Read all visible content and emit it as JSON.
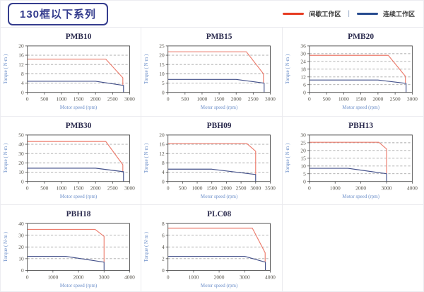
{
  "header": {
    "title": "130框以下系列",
    "legend": [
      {
        "label": "间歇工作区",
        "color": "#e63c22"
      },
      {
        "label": "连续工作区",
        "color": "#274b8f"
      }
    ],
    "legend_separator": "|",
    "accent_color": "#353d8e"
  },
  "styles": {
    "grid_color": "#a9a9a9",
    "axis_color": "#4d4d4d",
    "tick_label_color": "#55524a",
    "axis_label_color": "#6b8ec9",
    "title_color": "#2b2b4e",
    "intermittent_line_color": "#ec7c6d",
    "continuous_line_color": "#44518a"
  },
  "chart_data": [
    {
      "type": "line",
      "title": "PMB10",
      "xlabel": "Motor speed (rpm)",
      "ylabel": "Torque ( N·m )",
      "xlim": [
        0,
        3000
      ],
      "xticks": [
        0,
        500,
        1000,
        1500,
        2000,
        2500,
        3000
      ],
      "ylim": [
        0,
        20
      ],
      "yticks": [
        0,
        4,
        8,
        12,
        16,
        20
      ],
      "series": [
        {
          "name": "间歇工作区",
          "color": "#ec7c6d",
          "points": [
            [
              0,
              14.3
            ],
            [
              2300,
              14.3
            ],
            [
              2800,
              6.3
            ],
            [
              2800,
              3.2
            ]
          ]
        },
        {
          "name": "连续工作区",
          "color": "#44518a",
          "points": [
            [
              0,
              4.8
            ],
            [
              2000,
              4.8
            ],
            [
              2820,
              3
            ],
            [
              2820,
              0
            ]
          ]
        }
      ]
    },
    {
      "type": "line",
      "title": "PMB15",
      "xlabel": "Motor speed (rpm)",
      "ylabel": "Torque ( N·m )",
      "xlim": [
        0,
        3000
      ],
      "xticks": [
        0,
        500,
        1000,
        1500,
        2000,
        2500,
        3000
      ],
      "ylim": [
        0,
        25
      ],
      "yticks": [
        0,
        5,
        10,
        15,
        20,
        25
      ],
      "series": [
        {
          "name": "间歇工作区",
          "color": "#ec7c6d",
          "points": [
            [
              0,
              21.8
            ],
            [
              2300,
              21.8
            ],
            [
              2800,
              10
            ],
            [
              2800,
              5
            ]
          ]
        },
        {
          "name": "连续工作区",
          "color": "#44518a",
          "points": [
            [
              0,
              7
            ],
            [
              2000,
              7
            ],
            [
              2820,
              5
            ],
            [
              2820,
              0
            ]
          ]
        }
      ]
    },
    {
      "type": "line",
      "title": "PMB20",
      "xlabel": "Motor speed (rpm)",
      "ylabel": "Torque ( N·m )",
      "xlim": [
        0,
        3000
      ],
      "xticks": [
        0,
        500,
        1000,
        1500,
        2000,
        2500,
        3000
      ],
      "ylim": [
        0,
        36
      ],
      "yticks": [
        0,
        6,
        12,
        18,
        24,
        30,
        36
      ],
      "series": [
        {
          "name": "间歇工作区",
          "color": "#ec7c6d",
          "points": [
            [
              0,
              28.7
            ],
            [
              2300,
              28.7
            ],
            [
              2800,
              12.5
            ],
            [
              2800,
              7
            ]
          ]
        },
        {
          "name": "连续工作区",
          "color": "#44518a",
          "points": [
            [
              0,
              9.6
            ],
            [
              2000,
              9.6
            ],
            [
              2820,
              7
            ],
            [
              2820,
              0
            ]
          ]
        }
      ]
    },
    {
      "type": "line",
      "title": "PMB30",
      "xlabel": "Motor speed (rpm)",
      "ylabel": "Torque ( N·m )",
      "xlim": [
        0,
        3000
      ],
      "xticks": [
        0,
        500,
        1000,
        1500,
        2000,
        2500,
        3000
      ],
      "ylim": [
        0,
        50
      ],
      "yticks": [
        0,
        10,
        20,
        30,
        40,
        50
      ],
      "series": [
        {
          "name": "间歇工作区",
          "color": "#ec7c6d",
          "points": [
            [
              0,
              43
            ],
            [
              2300,
              43
            ],
            [
              2800,
              18
            ],
            [
              2800,
              10.5
            ]
          ]
        },
        {
          "name": "连续工作区",
          "color": "#44518a",
          "points": [
            [
              0,
              14.3
            ],
            [
              2000,
              14.3
            ],
            [
              2820,
              10.5
            ],
            [
              2820,
              0
            ]
          ]
        }
      ]
    },
    {
      "type": "line",
      "title": "PBH09",
      "xlabel": "Motor speed (rpm)",
      "ylabel": "Torque ( N·m )",
      "xlim": [
        0,
        3500
      ],
      "xticks": [
        0,
        500,
        1000,
        1500,
        2000,
        2500,
        3000,
        3500
      ],
      "ylim": [
        0,
        20
      ],
      "yticks": [
        0,
        4,
        8,
        12,
        16,
        20
      ],
      "series": [
        {
          "name": "间歇工作区",
          "color": "#ec7c6d",
          "points": [
            [
              0,
              16.3
            ],
            [
              2700,
              16.3
            ],
            [
              3000,
              13
            ],
            [
              3000,
              3
            ]
          ]
        },
        {
          "name": "连续工作区",
          "color": "#44518a",
          "points": [
            [
              0,
              5.3
            ],
            [
              1500,
              5.3
            ],
            [
              3000,
              3
            ],
            [
              3000,
              0
            ]
          ]
        }
      ]
    },
    {
      "type": "line",
      "title": "PBH13",
      "xlabel": "Motor speed (rpm)",
      "ylabel": "Torque ( N·m )",
      "xlim": [
        0,
        4000
      ],
      "xticks": [
        0,
        1000,
        2000,
        3000,
        4000
      ],
      "ylim": [
        0,
        30
      ],
      "yticks": [
        0,
        5,
        10,
        15,
        20,
        25,
        30
      ],
      "series": [
        {
          "name": "间歇工作区",
          "color": "#ec7c6d",
          "points": [
            [
              0,
              25.3
            ],
            [
              2700,
              25.3
            ],
            [
              3000,
              21
            ],
            [
              3000,
              5
            ]
          ]
        },
        {
          "name": "连续工作区",
          "color": "#44518a",
          "points": [
            [
              0,
              8.5
            ],
            [
              1500,
              8.5
            ],
            [
              3000,
              5
            ],
            [
              3000,
              0
            ]
          ]
        }
      ]
    },
    {
      "type": "line",
      "title": "PBH18",
      "xlabel": "Motor speed (rpm)",
      "ylabel": "Torque ( N·m )",
      "xlim": [
        0,
        4000
      ],
      "xticks": [
        0,
        1000,
        2000,
        3000,
        4000
      ],
      "ylim": [
        0,
        40
      ],
      "yticks": [
        0,
        10,
        20,
        30,
        40
      ],
      "series": [
        {
          "name": "间歇工作区",
          "color": "#ec7c6d",
          "points": [
            [
              0,
              35
            ],
            [
              2650,
              35
            ],
            [
              3000,
              29
            ],
            [
              3000,
              7
            ]
          ]
        },
        {
          "name": "连续工作区",
          "color": "#44518a",
          "points": [
            [
              0,
              12
            ],
            [
              1500,
              12
            ],
            [
              3000,
              7
            ],
            [
              3000,
              0
            ]
          ]
        }
      ]
    },
    {
      "type": "line",
      "title": "PLC08",
      "xlabel": "Motor speed (rpm)",
      "ylabel": "Torque ( N·m )",
      "xlim": [
        0,
        4000
      ],
      "xticks": [
        0,
        1000,
        2000,
        3000,
        4000
      ],
      "ylim": [
        0,
        8
      ],
      "yticks": [
        0,
        2,
        4,
        6,
        8
      ],
      "series": [
        {
          "name": "间歇工作区",
          "color": "#ec7c6d",
          "points": [
            [
              0,
              7.2
            ],
            [
              3300,
              7.2
            ],
            [
              3800,
              3
            ],
            [
              3800,
              1.5
            ]
          ]
        },
        {
          "name": "连续工作区",
          "color": "#44518a",
          "points": [
            [
              0,
              2.4
            ],
            [
              3000,
              2.4
            ],
            [
              3810,
              1.4
            ],
            [
              3810,
              0
            ]
          ]
        }
      ]
    }
  ]
}
